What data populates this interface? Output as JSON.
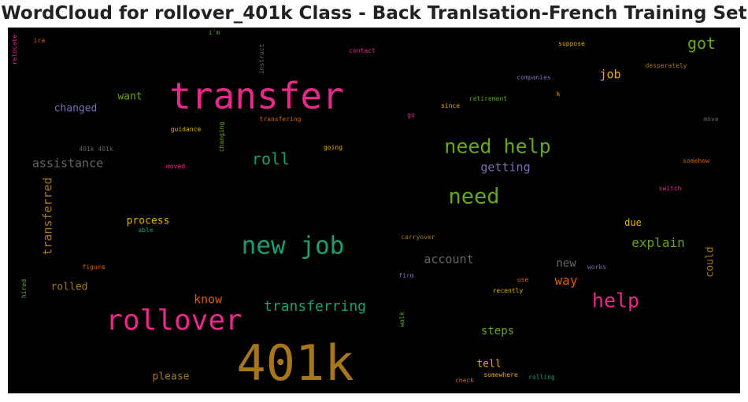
{
  "chart_data": {
    "type": "wordcloud",
    "title": "WordCloud for rollover_401k Class - Back Tranlsation-French Training Set",
    "background": "#000000",
    "words": [
      {
        "text": "401k",
        "color": "#a6761d"
      },
      {
        "text": "transfer",
        "color": "#e7298a"
      },
      {
        "text": "rollover",
        "color": "#e7298a"
      },
      {
        "text": "new job",
        "color": "#1b9e77"
      },
      {
        "text": "need help",
        "color": "#66a61e"
      },
      {
        "text": "need",
        "color": "#66a61e"
      },
      {
        "text": "help",
        "color": "#e7298a"
      },
      {
        "text": "transferring",
        "color": "#1b9e77"
      },
      {
        "text": "roll",
        "color": "#1b9e77"
      },
      {
        "text": "got",
        "color": "#66a61e"
      },
      {
        "text": "assistance",
        "color": "#666666"
      },
      {
        "text": "transferred",
        "color": "#a6761d"
      },
      {
        "text": "account",
        "color": "#666666"
      },
      {
        "text": "explain",
        "color": "#66a61e"
      },
      {
        "text": "getting",
        "color": "#7570b3"
      },
      {
        "text": "way",
        "color": "#d95f02"
      },
      {
        "text": "new",
        "color": "#666666"
      },
      {
        "text": "know",
        "color": "#d95f02"
      },
      {
        "text": "changed",
        "color": "#7570b3"
      },
      {
        "text": "job",
        "color": "#e6ab02"
      },
      {
        "text": "steps",
        "color": "#66a61e"
      },
      {
        "text": "process",
        "color": "#e6ab02"
      },
      {
        "text": "want",
        "color": "#66a61e"
      },
      {
        "text": "rolled",
        "color": "#a6761d"
      },
      {
        "text": "please",
        "color": "#a6761d"
      },
      {
        "text": "tell",
        "color": "#e6ab02"
      },
      {
        "text": "could",
        "color": "#a6761d"
      },
      {
        "text": "due",
        "color": "#e6ab02"
      },
      {
        "text": "contact",
        "color": "#e7298a"
      },
      {
        "text": "instruct",
        "color": "#666666"
      },
      {
        "text": "i'm",
        "color": "#66a61e"
      },
      {
        "text": "relocate",
        "color": "#e7298a"
      },
      {
        "text": "ira",
        "color": "#d95f02"
      },
      {
        "text": "suppose",
        "color": "#e6ab02"
      },
      {
        "text": "desperately",
        "color": "#a6761d"
      },
      {
        "text": "companies",
        "color": "#7570b3"
      },
      {
        "text": "retirement",
        "color": "#66a61e"
      },
      {
        "text": "since",
        "color": "#e6ab02"
      },
      {
        "text": "k",
        "color": "#e6ab02"
      },
      {
        "text": "go",
        "color": "#e7298a"
      },
      {
        "text": "move",
        "color": "#666666"
      },
      {
        "text": "transfering",
        "color": "#d95f02"
      },
      {
        "text": "guidance",
        "color": "#e6ab02"
      },
      {
        "text": "changing",
        "color": "#66a61e"
      },
      {
        "text": "401k 401k",
        "color": "#666666"
      },
      {
        "text": "going",
        "color": "#e6ab02"
      },
      {
        "text": "moved",
        "color": "#e7298a"
      },
      {
        "text": "somehow",
        "color": "#d95f02"
      },
      {
        "text": "switch",
        "color": "#e7298a"
      },
      {
        "text": "able",
        "color": "#1b9e77"
      },
      {
        "text": "carryover",
        "color": "#a6761d"
      },
      {
        "text": "figure",
        "color": "#d95f02"
      },
      {
        "text": "hired",
        "color": "#66a61e"
      },
      {
        "text": "firm",
        "color": "#7570b3"
      },
      {
        "text": "works",
        "color": "#7570b3"
      },
      {
        "text": "use",
        "color": "#d95f02"
      },
      {
        "text": "recently",
        "color": "#e6ab02"
      },
      {
        "text": "walk",
        "color": "#66a61e"
      },
      {
        "text": "check",
        "color": "#d95f02"
      },
      {
        "text": "somewhere",
        "color": "#e6ab02"
      },
      {
        "text": "rolling",
        "color": "#1b9e77"
      }
    ]
  }
}
